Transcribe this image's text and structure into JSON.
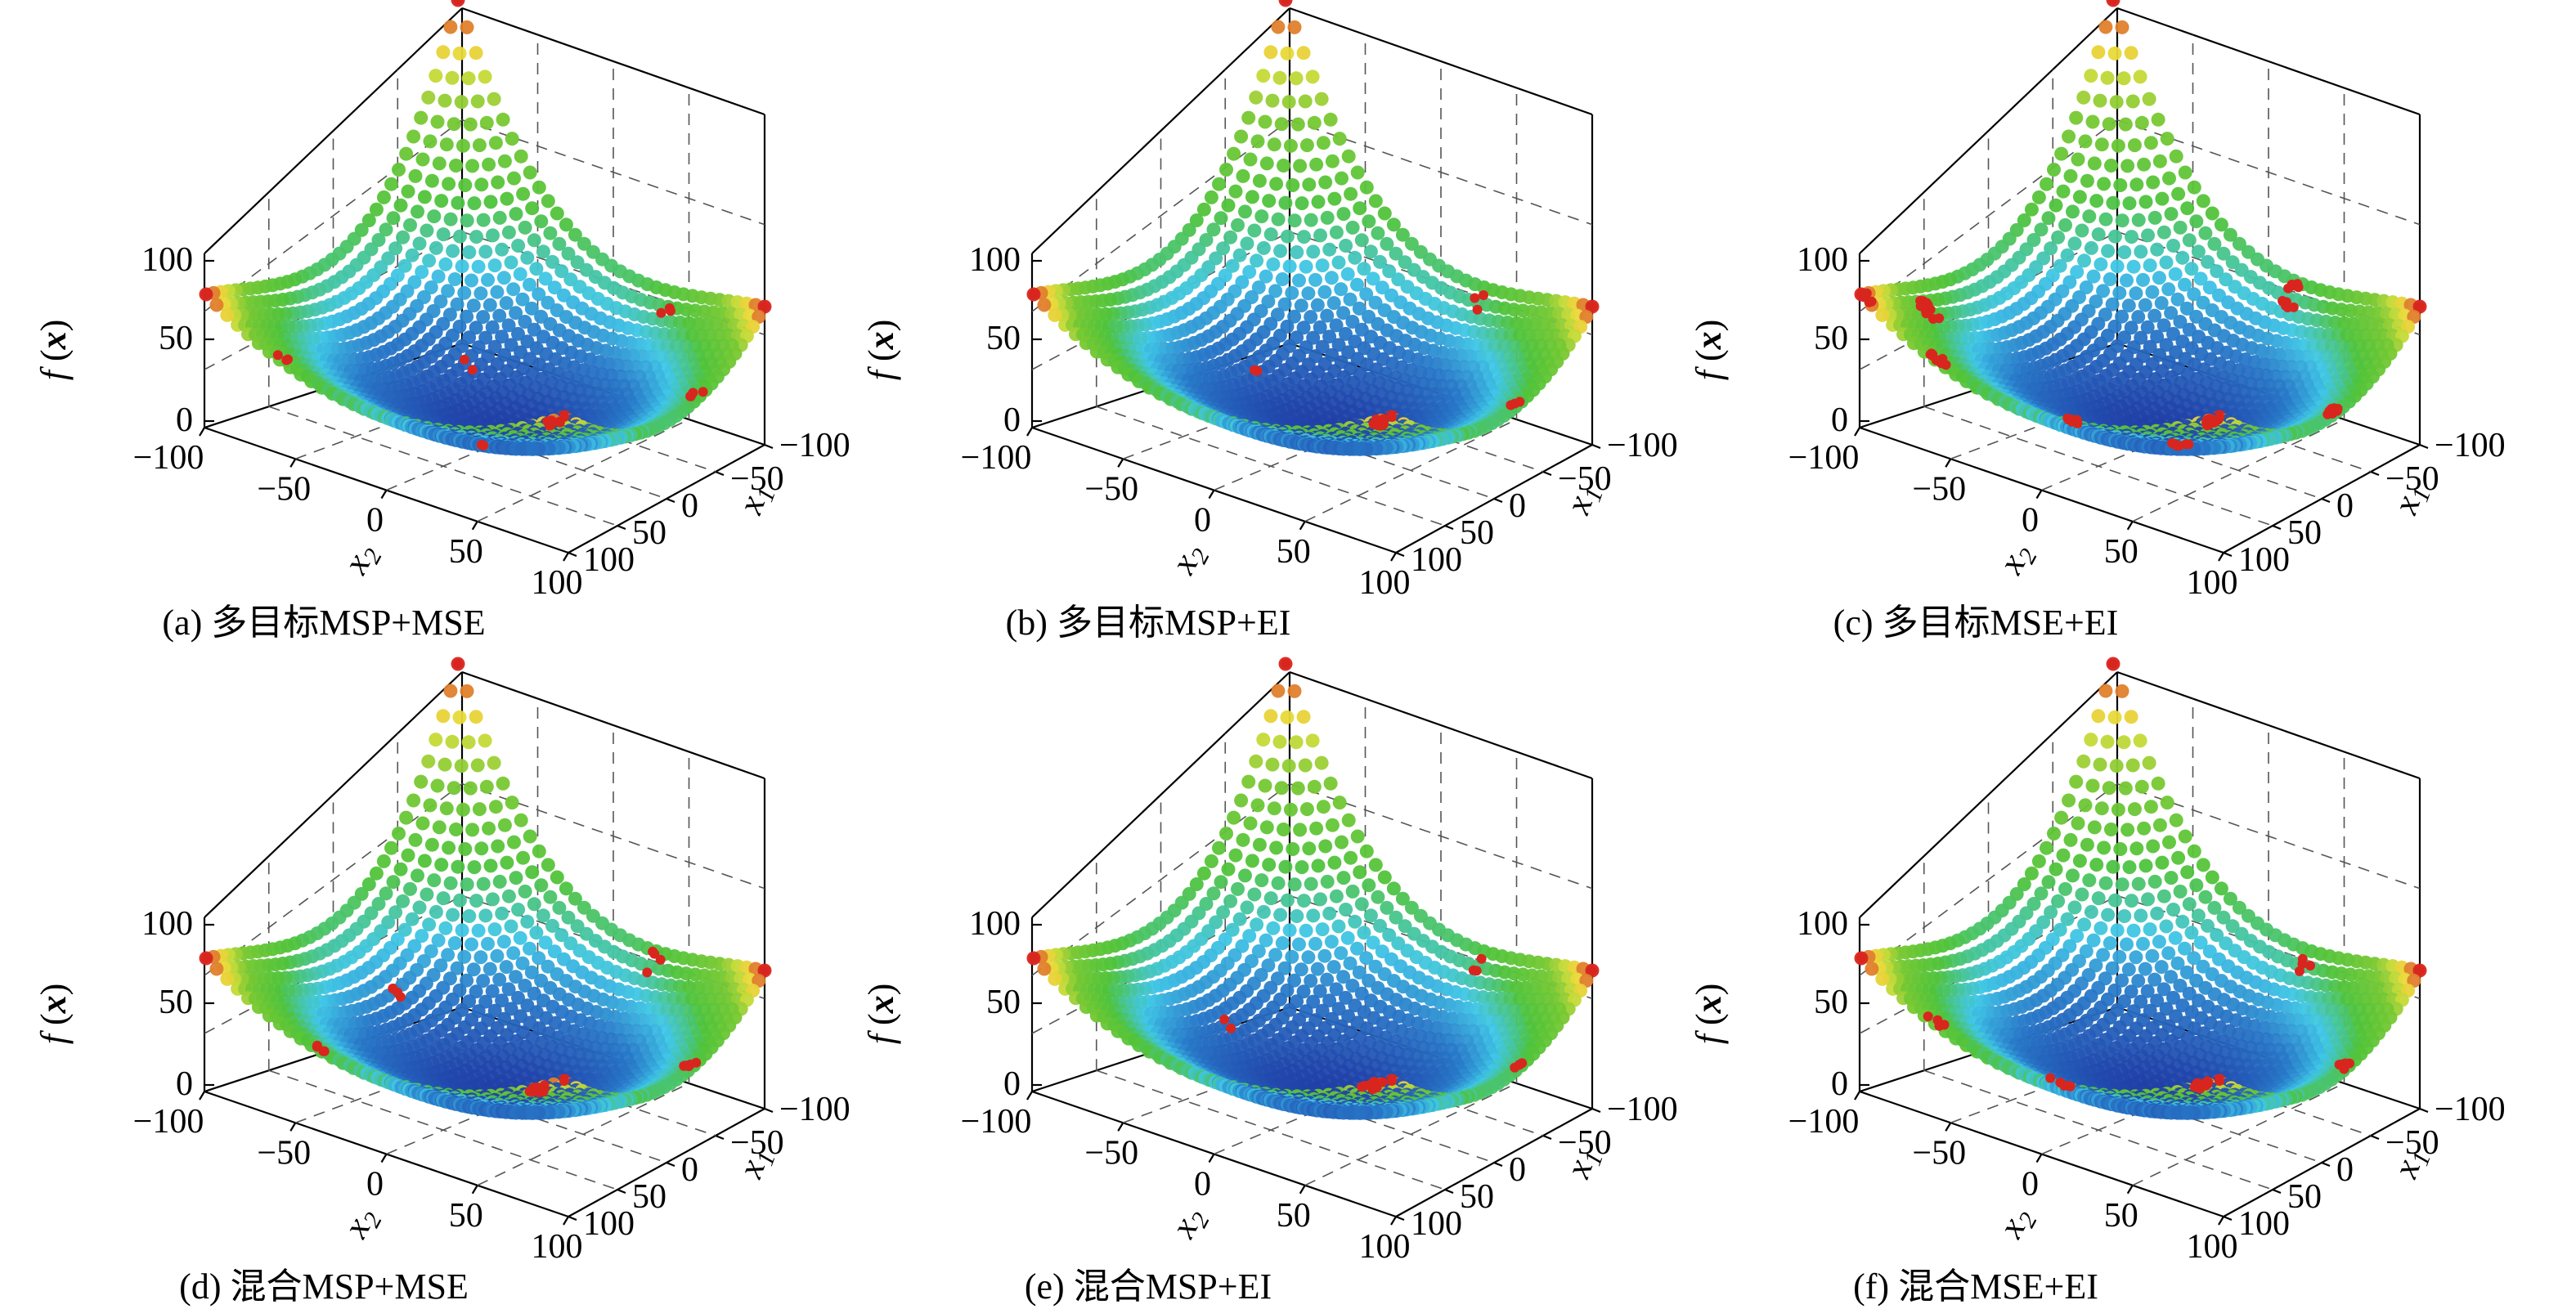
{
  "chart_data": [
    {
      "type": "scatter",
      "subtype": "surface3d",
      "title": "(a) 多目标MSP+MSE",
      "function_label": "f(x)",
      "xlabel": "x2",
      "ylabel": "x1",
      "zlabel": "f(x)",
      "x2_ticks": [
        "−100",
        "−50",
        "0",
        "50",
        "100"
      ],
      "x1_ticks": [
        "−100",
        "−50",
        "0",
        "50",
        "100"
      ],
      "z_ticks": [
        "0",
        "50",
        "100"
      ],
      "xlim": [
        -100,
        100
      ],
      "ylim": [
        -100,
        100
      ],
      "zlim": [
        0,
        100
      ],
      "colormap": [
        "#2140a8",
        "#3fc6e6",
        "#4fc33b",
        "#e9e23a",
        "#d8261f"
      ],
      "point_color": "#d8261f",
      "points": [
        {
          "x1": 20,
          "x2": 20,
          "count": 8
        },
        {
          "x1": -100,
          "x2": -100,
          "count": 1
        },
        {
          "x1": 100,
          "x2": 100,
          "count": 1
        },
        {
          "x1": 100,
          "x2": -100,
          "count": 1
        },
        {
          "x1": -100,
          "x2": 100,
          "count": 1
        },
        {
          "x1": -60,
          "x2": -95,
          "count": 3
        },
        {
          "x1": 95,
          "x2": 40,
          "count": 4
        },
        {
          "x1": 40,
          "x2": 95,
          "count": 3
        },
        {
          "x1": -40,
          "x2": 30,
          "count": 2
        },
        {
          "x1": 30,
          "x2": -60,
          "count": 2
        }
      ]
    },
    {
      "type": "scatter",
      "subtype": "surface3d",
      "title": "(b) 多目标MSP+EI",
      "function_label": "f(x)",
      "xlabel": "x2",
      "ylabel": "x1",
      "zlabel": "f(x)",
      "x2_ticks": [
        "−100",
        "−50",
        "0",
        "50",
        "100"
      ],
      "x1_ticks": [
        "−100",
        "−50",
        "0",
        "50",
        "100"
      ],
      "z_ticks": [
        "0",
        "50",
        "100"
      ],
      "xlim": [
        -100,
        100
      ],
      "ylim": [
        -100,
        100
      ],
      "zlim": [
        0,
        100
      ],
      "point_color": "#d8261f",
      "points": [
        {
          "x1": 20,
          "x2": 20,
          "count": 14
        },
        {
          "x1": -100,
          "x2": -100,
          "count": 1
        },
        {
          "x1": 100,
          "x2": 100,
          "count": 1
        },
        {
          "x1": 100,
          "x2": -100,
          "count": 1
        },
        {
          "x1": -100,
          "x2": 100,
          "count": 1
        },
        {
          "x1": 95,
          "x2": 30,
          "count": 3
        },
        {
          "x1": 30,
          "x2": 95,
          "count": 3
        },
        {
          "x1": -50,
          "x2": 10,
          "count": 2
        }
      ]
    },
    {
      "type": "scatter",
      "subtype": "surface3d",
      "title": "(c) 多目标MSE+EI",
      "function_label": "f(x)",
      "xlabel": "x2",
      "ylabel": "x1",
      "zlabel": "f(x)",
      "x2_ticks": [
        "−100",
        "−50",
        "0",
        "50",
        "100"
      ],
      "x1_ticks": [
        "−100",
        "−50",
        "0",
        "50",
        "100"
      ],
      "z_ticks": [
        "0",
        "50",
        "100"
      ],
      "xlim": [
        -100,
        100
      ],
      "ylim": [
        -100,
        100
      ],
      "zlim": [
        0,
        100
      ],
      "point_color": "#d8261f",
      "points": [
        {
          "x1": 20,
          "x2": 20,
          "count": 10
        },
        {
          "x1": -100,
          "x2": -100,
          "count": 12
        },
        {
          "x1": -90,
          "x2": -60,
          "count": 12
        },
        {
          "x1": -60,
          "x2": -95,
          "count": 10
        },
        {
          "x1": 100,
          "x2": 100,
          "count": 1
        },
        {
          "x1": 100,
          "x2": -100,
          "count": 1
        },
        {
          "x1": -100,
          "x2": 100,
          "count": 1
        },
        {
          "x1": 95,
          "x2": 20,
          "count": 14
        },
        {
          "x1": 20,
          "x2": 95,
          "count": 12
        },
        {
          "x1": -20,
          "x2": -40,
          "count": 6
        },
        {
          "x1": 60,
          "x2": -70,
          "count": 6
        }
      ]
    },
    {
      "type": "scatter",
      "subtype": "surface3d",
      "title": "(d) 混合MSP+MSE",
      "function_label": "f(x)",
      "xlabel": "x2",
      "ylabel": "x1",
      "zlabel": "f(x)",
      "x2_ticks": [
        "−100",
        "−50",
        "0",
        "50",
        "100"
      ],
      "x1_ticks": [
        "−100",
        "−50",
        "0",
        "50",
        "100"
      ],
      "z_ticks": [
        "0",
        "50",
        "100"
      ],
      "xlim": [
        -100,
        100
      ],
      "ylim": [
        -100,
        100
      ],
      "zlim": [
        0,
        100
      ],
      "point_color": "#d8261f",
      "points": [
        {
          "x1": 15,
          "x2": 15,
          "count": 10
        },
        {
          "x1": -100,
          "x2": -100,
          "count": 1
        },
        {
          "x1": 100,
          "x2": 100,
          "count": 1
        },
        {
          "x1": 100,
          "x2": -100,
          "count": 1
        },
        {
          "x1": -100,
          "x2": 100,
          "count": 1
        },
        {
          "x1": -40,
          "x2": -95,
          "count": 4
        },
        {
          "x1": 95,
          "x2": 30,
          "count": 5
        },
        {
          "x1": 30,
          "x2": 95,
          "count": 4
        },
        {
          "x1": -70,
          "x2": 10,
          "count": 3
        }
      ]
    },
    {
      "type": "scatter",
      "subtype": "surface3d",
      "title": "(e) 混合MSP+EI",
      "function_label": "f(x)",
      "xlabel": "x2",
      "ylabel": "x1",
      "zlabel": "f(x)",
      "x2_ticks": [
        "−100",
        "−50",
        "0",
        "50",
        "100"
      ],
      "x1_ticks": [
        "−100",
        "−50",
        "0",
        "50",
        "100"
      ],
      "z_ticks": [
        "0",
        "50",
        "100"
      ],
      "xlim": [
        -100,
        100
      ],
      "ylim": [
        -100,
        100
      ],
      "zlim": [
        0,
        100
      ],
      "point_color": "#d8261f",
      "points": [
        {
          "x1": 15,
          "x2": 20,
          "count": 16
        },
        {
          "x1": -100,
          "x2": -100,
          "count": 1
        },
        {
          "x1": 100,
          "x2": 100,
          "count": 1
        },
        {
          "x1": 100,
          "x2": -100,
          "count": 1
        },
        {
          "x1": -100,
          "x2": 100,
          "count": 1
        },
        {
          "x1": 95,
          "x2": 30,
          "count": 4
        },
        {
          "x1": 30,
          "x2": 95,
          "count": 3
        },
        {
          "x1": -60,
          "x2": 0,
          "count": 2
        }
      ]
    },
    {
      "type": "scatter",
      "subtype": "surface3d",
      "title": "(f) 混合MSE+EI",
      "function_label": "f(x)",
      "xlabel": "x2",
      "ylabel": "x1",
      "zlabel": "f(x)",
      "x2_ticks": [
        "−100",
        "−50",
        "0",
        "50",
        "100"
      ],
      "x1_ticks": [
        "−100",
        "−50",
        "0",
        "50",
        "100"
      ],
      "z_ticks": [
        "0",
        "50",
        "100"
      ],
      "xlim": [
        -100,
        100
      ],
      "ylim": [
        -100,
        100
      ],
      "zlim": [
        0,
        100
      ],
      "point_color": "#d8261f",
      "points": [
        {
          "x1": 15,
          "x2": 20,
          "count": 10
        },
        {
          "x1": -100,
          "x2": -100,
          "count": 1
        },
        {
          "x1": 100,
          "x2": 100,
          "count": 1
        },
        {
          "x1": 100,
          "x2": -100,
          "count": 1
        },
        {
          "x1": -100,
          "x2": 100,
          "count": 1
        },
        {
          "x1": -60,
          "x2": -95,
          "count": 4
        },
        {
          "x1": 95,
          "x2": 30,
          "count": 5
        },
        {
          "x1": 30,
          "x2": 95,
          "count": 4
        },
        {
          "x1": -20,
          "x2": -50,
          "count": 5
        }
      ]
    }
  ]
}
